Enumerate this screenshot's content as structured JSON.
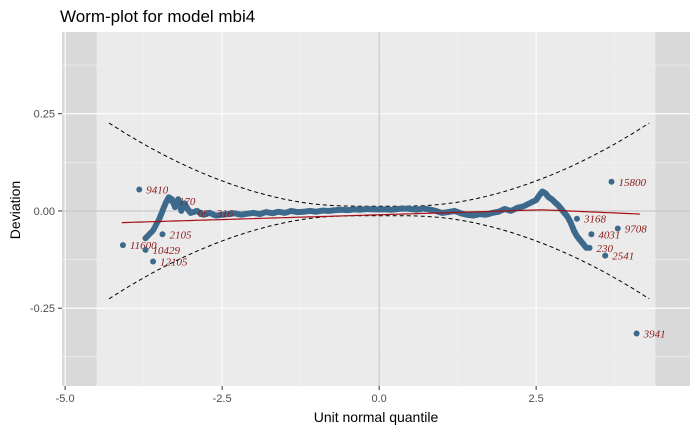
{
  "chart_data": {
    "type": "scatter",
    "title": "Worm-plot for model mbi4",
    "xlabel": "Unit normal quantile",
    "ylabel": "Deviation",
    "xlim": [
      -5.05,
      4.95
    ],
    "ylim": [
      -0.45,
      0.46
    ],
    "x_ticks": [
      -5.0,
      -2.5,
      0.0,
      2.5
    ],
    "x_tick_labels": [
      "-5.0",
      "-2.5",
      "0.0",
      "2.5"
    ],
    "y_ticks": [
      -0.25,
      0.0,
      0.25
    ],
    "y_tick_labels": [
      "-0.25",
      "0.00",
      "0.25"
    ],
    "grid": true,
    "reference_lines": {
      "x": 0,
      "y": 0
    },
    "shaded_tails": {
      "left": [
        -5.05,
        -4.5
      ],
      "right": [
        4.4,
        4.95
      ]
    },
    "confidence_band_constant": 0.0122,
    "worm": [
      [
        -3.72,
        -0.07
      ],
      [
        -3.6,
        -0.05
      ],
      [
        -3.5,
        -0.02
      ],
      [
        -3.45,
        0.0
      ],
      [
        -3.4,
        0.02
      ],
      [
        -3.35,
        0.035
      ],
      [
        -3.3,
        0.03
      ],
      [
        -3.25,
        0.01
      ],
      [
        -3.2,
        0.03
      ],
      [
        -3.15,
        0.0
      ],
      [
        -3.1,
        0.02
      ],
      [
        -3.05,
        0.005
      ],
      [
        -3.0,
        -0.005
      ],
      [
        -2.9,
        0.0
      ],
      [
        -2.8,
        -0.01
      ],
      [
        -2.7,
        -0.005
      ],
      [
        -2.6,
        -0.012
      ],
      [
        -2.5,
        -0.01
      ],
      [
        -2.4,
        -0.008
      ],
      [
        -2.3,
        -0.006
      ],
      [
        -2.2,
        -0.01
      ],
      [
        -2.1,
        -0.007
      ],
      [
        -2.0,
        -0.005
      ],
      [
        -1.9,
        -0.008
      ],
      [
        -1.8,
        -0.003
      ],
      [
        -1.7,
        -0.006
      ],
      [
        -1.6,
        -0.002
      ],
      [
        -1.5,
        -0.005
      ],
      [
        -1.4,
        0.0
      ],
      [
        -1.3,
        -0.003
      ],
      [
        -1.2,
        -0.002
      ],
      [
        -1.1,
        0.0
      ],
      [
        -1.0,
        -0.002
      ],
      [
        -0.9,
        0.001
      ],
      [
        -0.8,
        0.0
      ],
      [
        -0.7,
        0.002
      ],
      [
        -0.6,
        0.003
      ],
      [
        -0.5,
        0.002
      ],
      [
        -0.4,
        0.004
      ],
      [
        -0.3,
        0.003
      ],
      [
        -0.2,
        0.005
      ],
      [
        -0.1,
        0.004
      ],
      [
        0.0,
        0.004
      ],
      [
        0.1,
        0.004
      ],
      [
        0.2,
        0.003
      ],
      [
        0.3,
        0.005
      ],
      [
        0.4,
        0.006
      ],
      [
        0.5,
        0.005
      ],
      [
        0.6,
        0.003
      ],
      [
        0.7,
        0.006
      ],
      [
        0.8,
        0.004
      ],
      [
        0.9,
        0.0
      ],
      [
        1.0,
        -0.005
      ],
      [
        1.1,
        -0.003
      ],
      [
        1.2,
        0.0
      ],
      [
        1.3,
        -0.006
      ],
      [
        1.4,
        -0.01
      ],
      [
        1.5,
        -0.012
      ],
      [
        1.6,
        -0.008
      ],
      [
        1.7,
        -0.01
      ],
      [
        1.8,
        -0.005
      ],
      [
        1.9,
        -0.002
      ],
      [
        2.0,
        0.005
      ],
      [
        2.1,
        0.0
      ],
      [
        2.2,
        0.008
      ],
      [
        2.3,
        0.012
      ],
      [
        2.4,
        0.02
      ],
      [
        2.5,
        0.028
      ],
      [
        2.55,
        0.04
      ],
      [
        2.6,
        0.05
      ],
      [
        2.65,
        0.045
      ],
      [
        2.7,
        0.035
      ],
      [
        2.75,
        0.03
      ],
      [
        2.8,
        0.022
      ],
      [
        2.85,
        0.015
      ],
      [
        2.9,
        0.005
      ],
      [
        2.95,
        -0.005
      ],
      [
        3.0,
        -0.015
      ],
      [
        3.05,
        -0.03
      ],
      [
        3.1,
        -0.05
      ],
      [
        3.15,
        -0.065
      ],
      [
        3.2,
        -0.075
      ],
      [
        3.25,
        -0.085
      ],
      [
        3.3,
        -0.095
      ]
    ],
    "labeled_points": [
      {
        "x": -3.82,
        "y": 0.055,
        "label": "9410"
      },
      {
        "x": -4.08,
        "y": -0.088,
        "label": "11600"
      },
      {
        "x": -3.6,
        "y": -0.13,
        "label": "12105"
      },
      {
        "x": -3.72,
        "y": -0.1,
        "label": "10429"
      },
      {
        "x": -3.45,
        "y": -0.06,
        "label": "2105"
      },
      {
        "x": -3.3,
        "y": 0.025,
        "label": "170"
      },
      {
        "x": -3.0,
        "y": -0.005,
        "label": "69"
      },
      {
        "x": -2.7,
        "y": -0.005,
        "label": "316"
      },
      {
        "x": 3.7,
        "y": 0.075,
        "label": "15800"
      },
      {
        "x": 3.15,
        "y": -0.02,
        "label": "3168"
      },
      {
        "x": 3.38,
        "y": -0.06,
        "label": "4031"
      },
      {
        "x": 3.35,
        "y": -0.095,
        "label": "230"
      },
      {
        "x": 3.6,
        "y": -0.115,
        "label": "2541"
      },
      {
        "x": 3.8,
        "y": -0.045,
        "label": "9708"
      },
      {
        "x": 4.1,
        "y": -0.315,
        "label": "3941"
      }
    ],
    "fit_line": {
      "x": [
        -4.1,
        4.15
      ],
      "y": [
        -0.03,
        -0.008
      ],
      "x_peak": 2.6,
      "y_peak": 0.003
    },
    "colors": {
      "panel": "#ebebeb",
      "grid_major": "#ffffff",
      "grid_minor": "#f2f2f2",
      "tail_shade": "#d9d9d9",
      "ref_line": "#bdbdbd",
      "points": "#3d6a8c",
      "fit_line": "#a50f15",
      "labels": "#8b1a1a",
      "band": "#000000"
    }
  }
}
